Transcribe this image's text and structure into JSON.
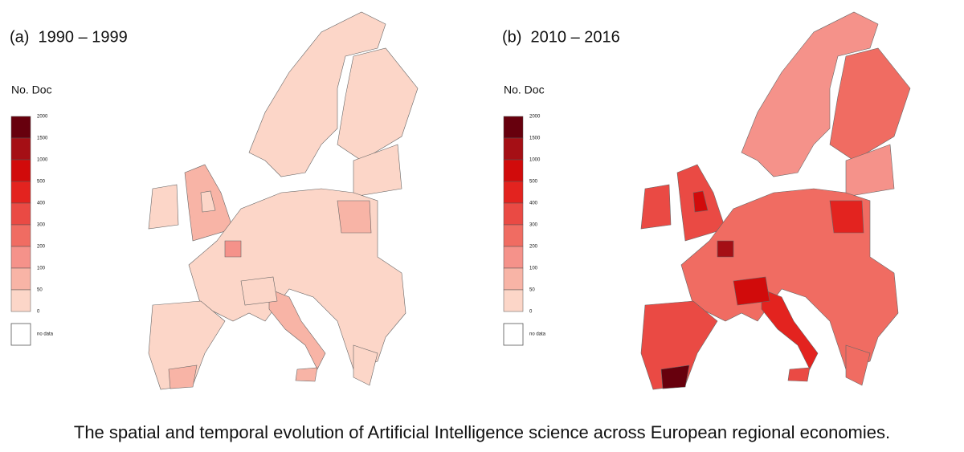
{
  "panels": [
    {
      "title": "(a)  1990 – 1999"
    },
    {
      "title": "(b)  2010 – 2016"
    }
  ],
  "legend": {
    "title": "No. Doc",
    "breaks": [
      "2000",
      "1500",
      "1000",
      "500",
      "400",
      "300",
      "200",
      "100",
      "50",
      "0"
    ],
    "colors": [
      "#67000d",
      "#a50f15",
      "#d10b0b",
      "#e3231f",
      "#ea4a44",
      "#f06c62",
      "#f5928a",
      "#f8b4a6",
      "#fcd6c8"
    ],
    "no_data": "no data"
  },
  "caption": "The spatial and temporal evolution of Artificial Intelligence science across European regional economies."
}
